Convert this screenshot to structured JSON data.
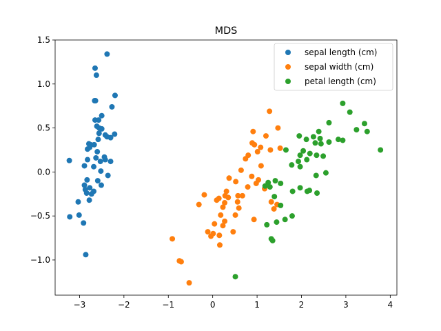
{
  "chart_data": {
    "type": "scatter",
    "title": "MDS",
    "xlabel": "",
    "ylabel": "",
    "xlim": [
      -3.55,
      4.15
    ],
    "ylim": [
      -1.4,
      1.5
    ],
    "xticks": [
      -3,
      -2,
      -1,
      0,
      1,
      2,
      3,
      4
    ],
    "xtick_labels": [
      "−3",
      "−2",
      "−1",
      "0",
      "1",
      "2",
      "3",
      "4"
    ],
    "yticks": [
      -1.0,
      -0.5,
      0.0,
      0.5,
      1.0,
      1.5
    ],
    "ytick_labels": [
      "−1.0",
      "−0.5",
      "0.0",
      "0.5",
      "1.0",
      "1.5"
    ],
    "grid": false,
    "legend_position": "top-right",
    "series": [
      {
        "name": "sepal length (cm)",
        "color": "#1f77b4",
        "points": [
          [
            -2.38,
            1.34
          ],
          [
            -2.65,
            1.18
          ],
          [
            -2.62,
            1.1
          ],
          [
            -2.2,
            0.87
          ],
          [
            -2.64,
            0.81
          ],
          [
            -2.66,
            0.81
          ],
          [
            -2.27,
            0.74
          ],
          [
            -2.5,
            0.64
          ],
          [
            -2.65,
            0.59
          ],
          [
            -2.57,
            0.59
          ],
          [
            -2.61,
            0.52
          ],
          [
            -2.56,
            0.5
          ],
          [
            -2.5,
            0.49
          ],
          [
            -2.38,
            0.4
          ],
          [
            -2.21,
            0.43
          ],
          [
            -2.42,
            0.42
          ],
          [
            -2.3,
            0.39
          ],
          [
            -2.56,
            0.44
          ],
          [
            -2.58,
            0.37
          ],
          [
            -2.79,
            0.32
          ],
          [
            -2.75,
            0.31
          ],
          [
            -2.67,
            0.31
          ],
          [
            -2.77,
            0.28
          ],
          [
            -2.82,
            0.26
          ],
          [
            -2.6,
            0.23
          ],
          [
            -2.44,
            0.17
          ],
          [
            -2.63,
            0.16
          ],
          [
            -2.42,
            0.14
          ],
          [
            -2.82,
            0.14
          ],
          [
            -3.23,
            0.13
          ],
          [
            -2.53,
            0.12
          ],
          [
            -2.3,
            0.12
          ],
          [
            -2.89,
            0.07
          ],
          [
            -2.68,
            0.06
          ],
          [
            -2.52,
            0.01
          ],
          [
            -2.36,
            -0.04
          ],
          [
            -2.83,
            -0.09
          ],
          [
            -2.59,
            -0.1
          ],
          [
            -2.89,
            -0.15
          ],
          [
            -2.51,
            -0.15
          ],
          [
            -2.77,
            -0.18
          ],
          [
            -2.87,
            -0.2
          ],
          [
            -2.68,
            -0.22
          ],
          [
            -2.84,
            -0.24
          ],
          [
            -2.73,
            -0.25
          ],
          [
            -2.78,
            -0.32
          ],
          [
            -3.03,
            -0.34
          ],
          [
            -3.01,
            -0.49
          ],
          [
            -3.22,
            -0.51
          ],
          [
            -2.91,
            -0.58
          ],
          [
            -2.86,
            -0.94
          ]
        ]
      },
      {
        "name": "sepal width (cm)",
        "color": "#ff7f0e",
        "points": [
          [
            1.28,
            0.69
          ],
          [
            1.47,
            0.5
          ],
          [
            0.91,
            0.46
          ],
          [
            1.2,
            0.41
          ],
          [
            0.89,
            0.33
          ],
          [
            0.94,
            0.31
          ],
          [
            1.08,
            0.28
          ],
          [
            1.52,
            0.27
          ],
          [
            1.3,
            0.25
          ],
          [
            1.01,
            0.23
          ],
          [
            0.8,
            0.19
          ],
          [
            0.74,
            0.15
          ],
          [
            1.09,
            0.07
          ],
          [
            0.64,
            0.02
          ],
          [
            0.88,
            -0.05
          ],
          [
            1.03,
            -0.09
          ],
          [
            0.37,
            -0.07
          ],
          [
            0.52,
            -0.11
          ],
          [
            0.98,
            -0.13
          ],
          [
            0.79,
            -0.17
          ],
          [
            1.17,
            -0.19
          ],
          [
            0.31,
            -0.22
          ],
          [
            0.57,
            -0.27
          ],
          [
            -0.19,
            -0.26
          ],
          [
            0.28,
            -0.27
          ],
          [
            0.67,
            -0.27
          ],
          [
            0.35,
            -0.29
          ],
          [
            0.14,
            -0.3
          ],
          [
            0.09,
            -0.32
          ],
          [
            1.32,
            -0.34
          ],
          [
            0.56,
            -0.34
          ],
          [
            0.27,
            -0.35
          ],
          [
            -0.31,
            -0.37
          ],
          [
            1.45,
            -0.37
          ],
          [
            0.23,
            -0.4
          ],
          [
            0.59,
            -0.41
          ],
          [
            1.38,
            -0.42
          ],
          [
            0.51,
            -0.49
          ],
          [
            0.18,
            -0.49
          ],
          [
            0.93,
            -0.54
          ],
          [
            0.27,
            -0.56
          ],
          [
            0.04,
            -0.59
          ],
          [
            0.23,
            -0.61
          ],
          [
            -0.11,
            -0.68
          ],
          [
            0.46,
            -0.68
          ],
          [
            0.01,
            -0.7
          ],
          [
            0.15,
            -0.72
          ],
          [
            -0.04,
            -0.73
          ],
          [
            -0.91,
            -0.76
          ],
          [
            0.16,
            -0.83
          ],
          [
            -0.75,
            -1.01
          ],
          [
            -0.71,
            -1.02
          ],
          [
            -0.53,
            -1.26
          ]
        ]
      },
      {
        "name": "petal length (cm)",
        "color": "#2ca02c",
        "points": [
          [
            2.93,
            0.78
          ],
          [
            3.09,
            0.68
          ],
          [
            2.62,
            0.56
          ],
          [
            3.42,
            0.55
          ],
          [
            3.24,
            0.48
          ],
          [
            2.39,
            0.46
          ],
          [
            3.48,
            0.46
          ],
          [
            1.95,
            0.41
          ],
          [
            2.27,
            0.4
          ],
          [
            2.11,
            0.37
          ],
          [
            2.42,
            0.38
          ],
          [
            2.83,
            0.37
          ],
          [
            2.93,
            0.36
          ],
          [
            2.31,
            0.33
          ],
          [
            2.44,
            0.32
          ],
          [
            2.62,
            0.34
          ],
          [
            3.78,
            0.25
          ],
          [
            1.65,
            0.25
          ],
          [
            2.04,
            0.24
          ],
          [
            2.19,
            0.21
          ],
          [
            2.34,
            0.19
          ],
          [
            1.97,
            0.19
          ],
          [
            2.49,
            0.18
          ],
          [
            1.93,
            0.12
          ],
          [
            2.12,
            0.14
          ],
          [
            1.78,
            0.08
          ],
          [
            1.97,
            0.06
          ],
          [
            2.33,
            -0.04
          ],
          [
            2.55,
            -0.01
          ],
          [
            1.41,
            -0.1
          ],
          [
            1.25,
            -0.12
          ],
          [
            1.53,
            -0.13
          ],
          [
            1.18,
            -0.16
          ],
          [
            1.29,
            -0.17
          ],
          [
            1.97,
            -0.18
          ],
          [
            1.8,
            -0.22
          ],
          [
            2.18,
            -0.21
          ],
          [
            2.13,
            -0.22
          ],
          [
            2.35,
            -0.24
          ],
          [
            1.39,
            -0.28
          ],
          [
            1.53,
            -0.38
          ],
          [
            1.79,
            -0.5
          ],
          [
            1.63,
            -0.54
          ],
          [
            1.44,
            -0.57
          ],
          [
            1.22,
            -0.6
          ],
          [
            1.32,
            -0.76
          ],
          [
            1.35,
            -0.78
          ],
          [
            0.51,
            -1.19
          ]
        ]
      }
    ]
  }
}
